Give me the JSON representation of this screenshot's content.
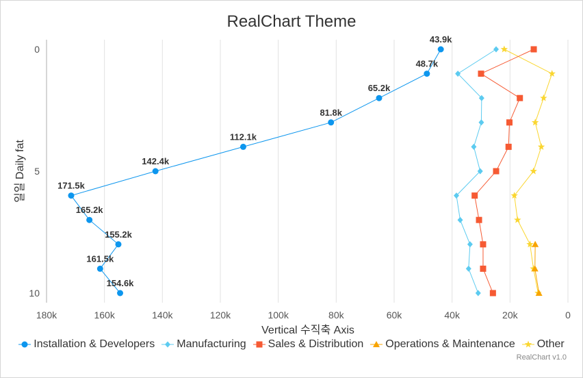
{
  "chart_data": {
    "type": "line",
    "title": "RealChart Theme",
    "xlabel": "Vertical 수직축 Axis",
    "ylabel": "일일 Daily fat",
    "credit": "RealChart v1.0",
    "x_reversed": true,
    "xlim": [
      0,
      180000
    ],
    "ylim": [
      0,
      10
    ],
    "x_ticks": [
      180000,
      160000,
      140000,
      120000,
      100000,
      80000,
      60000,
      40000,
      20000,
      0
    ],
    "x_tick_labels": [
      "180k",
      "160k",
      "140k",
      "120k",
      "100k",
      "80k",
      "60k",
      "40k",
      "20k",
      "0"
    ],
    "y_ticks": [
      0,
      5,
      10
    ],
    "y_tick_labels": [
      "0",
      "5",
      "10"
    ],
    "grid": true,
    "legend_position": "bottom",
    "categories": [
      0,
      1,
      2,
      3,
      4,
      5,
      6,
      7,
      8,
      9,
      10
    ],
    "series": [
      {
        "name": "Installation & Developers",
        "color": "#0d96ee",
        "marker": "circle",
        "values": [
          43900,
          48700,
          65200,
          81800,
          112100,
          142400,
          171500,
          165200,
          155200,
          161500,
          154600
        ],
        "labels": [
          "43.9k",
          "48.7k",
          "65.2k",
          "81.8k",
          "112.1k",
          "142.4k",
          "171.5k",
          "165.2k",
          "155.2k",
          "161.5k",
          "154.6k"
        ]
      },
      {
        "name": "Manufacturing",
        "color": "#5ccbf0",
        "marker": "diamond",
        "values": [
          24800,
          38000,
          29800,
          29900,
          32500,
          30300,
          38500,
          37200,
          33800,
          34300,
          31000
        ]
      },
      {
        "name": "Sales & Distribution",
        "color": "#f65a33",
        "marker": "square",
        "values": [
          11800,
          30000,
          16600,
          20200,
          20500,
          24800,
          32200,
          30700,
          29300,
          29300,
          25900
        ]
      },
      {
        "name": "Operations & Maintenance",
        "color": "#f8a400",
        "marker": "triangle",
        "values": [
          null,
          null,
          null,
          null,
          null,
          null,
          null,
          null,
          11300,
          11400,
          10000
        ]
      },
      {
        "name": "Other",
        "color": "#fad630",
        "marker": "star",
        "values": [
          22000,
          5500,
          8400,
          11300,
          9200,
          11900,
          18500,
          17400,
          13100,
          11900,
          10300
        ]
      }
    ]
  }
}
